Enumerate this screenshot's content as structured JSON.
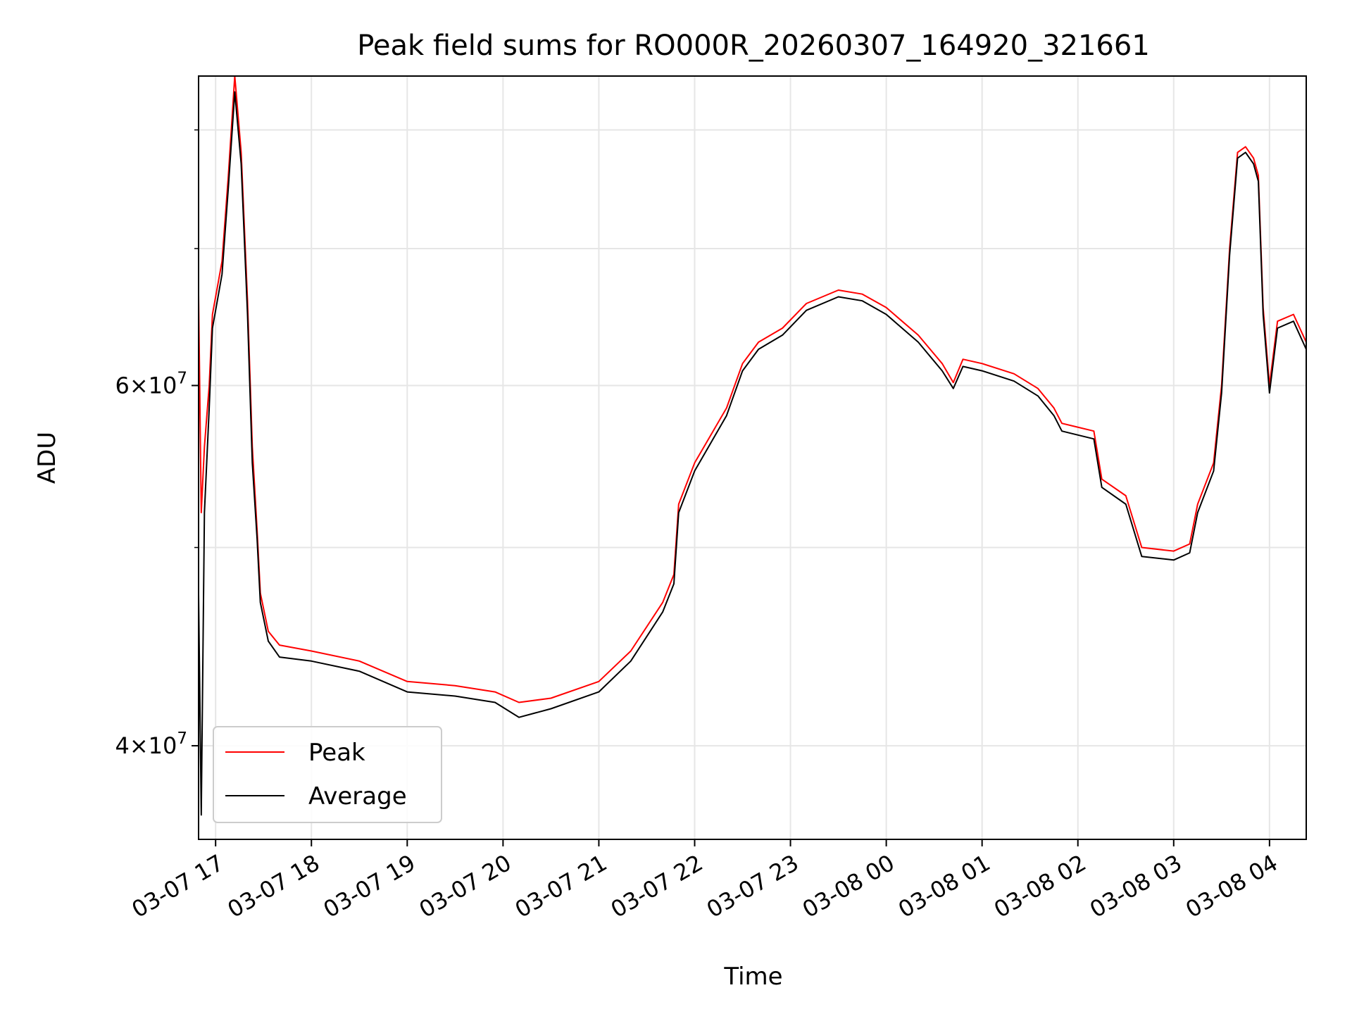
{
  "chart_data": {
    "type": "line",
    "title": "Peak field sums for RO000R_20260307_164920_321661",
    "xlabel": "Time",
    "ylabel": "ADU",
    "yscale": "log",
    "ylim": [
      36000000,
      85000000
    ],
    "xlim": [
      "2026-03-07 16:49:20",
      "2026-03-08 04:23:00"
    ],
    "grid": true,
    "legend_position": "lower-left",
    "x_ticks": [
      {
        "t": "2026-03-07 17:00",
        "label": "03-07 17"
      },
      {
        "t": "2026-03-07 18:00",
        "label": "03-07 18"
      },
      {
        "t": "2026-03-07 19:00",
        "label": "03-07 19"
      },
      {
        "t": "2026-03-07 20:00",
        "label": "03-07 20"
      },
      {
        "t": "2026-03-07 21:00",
        "label": "03-07 21"
      },
      {
        "t": "2026-03-07 22:00",
        "label": "03-07 22"
      },
      {
        "t": "2026-03-07 23:00",
        "label": "03-07 23"
      },
      {
        "t": "2026-03-08 00:00",
        "label": "03-08 00"
      },
      {
        "t": "2026-03-08 01:00",
        "label": "03-08 01"
      },
      {
        "t": "2026-03-08 02:00",
        "label": "03-08 02"
      },
      {
        "t": "2026-03-08 03:00",
        "label": "03-08 03"
      },
      {
        "t": "2026-03-08 04:00",
        "label": "03-08 04"
      }
    ],
    "y_ticks_major": [
      {
        "value": 40000000,
        "label_mantissa": "4",
        "label_base": "10",
        "label_exp": "7"
      },
      {
        "value": 60000000,
        "label_mantissa": "6",
        "label_base": "10",
        "label_exp": "7"
      }
    ],
    "y_ticks_minor": [
      50000000,
      70000000,
      80000000
    ],
    "series": [
      {
        "name": "Peak",
        "color": "#ff0000",
        "points": [
          [
            "2026-03-07 16:49",
            70000000
          ],
          [
            "2026-03-07 16:51",
            52000000
          ],
          [
            "2026-03-07 16:53",
            56000000
          ],
          [
            "2026-03-07 16:56",
            60000000
          ],
          [
            "2026-03-07 16:58",
            65000000
          ],
          [
            "2026-03-07 17:04",
            69000000
          ],
          [
            "2026-03-07 17:08",
            76000000
          ],
          [
            "2026-03-07 17:12",
            85000000
          ],
          [
            "2026-03-07 17:16",
            78000000
          ],
          [
            "2026-03-07 17:20",
            66000000
          ],
          [
            "2026-03-07 17:23",
            56000000
          ],
          [
            "2026-03-07 17:26",
            51000000
          ],
          [
            "2026-03-07 17:28",
            47500000
          ],
          [
            "2026-03-07 17:33",
            45500000
          ],
          [
            "2026-03-07 17:40",
            44800000
          ],
          [
            "2026-03-07 18:00",
            44500000
          ],
          [
            "2026-03-07 18:30",
            44000000
          ],
          [
            "2026-03-07 19:00",
            43000000
          ],
          [
            "2026-03-07 19:30",
            42800000
          ],
          [
            "2026-03-07 19:55",
            42500000
          ],
          [
            "2026-03-07 20:10",
            42000000
          ],
          [
            "2026-03-07 20:30",
            42200000
          ],
          [
            "2026-03-07 21:00",
            43000000
          ],
          [
            "2026-03-07 21:20",
            44500000
          ],
          [
            "2026-03-07 21:40",
            47000000
          ],
          [
            "2026-03-07 21:47",
            48500000
          ],
          [
            "2026-03-07 21:50",
            52500000
          ],
          [
            "2026-03-07 22:00",
            55000000
          ],
          [
            "2026-03-07 22:20",
            58500000
          ],
          [
            "2026-03-07 22:30",
            61500000
          ],
          [
            "2026-03-07 22:40",
            63000000
          ],
          [
            "2026-03-07 22:55",
            64000000
          ],
          [
            "2026-03-07 23:10",
            65800000
          ],
          [
            "2026-03-07 23:30",
            66800000
          ],
          [
            "2026-03-07 23:45",
            66500000
          ],
          [
            "2026-03-08 00:00",
            65500000
          ],
          [
            "2026-03-08 00:20",
            63500000
          ],
          [
            "2026-03-08 00:35",
            61500000
          ],
          [
            "2026-03-08 00:42",
            60200000
          ],
          [
            "2026-03-08 00:48",
            61800000
          ],
          [
            "2026-03-08 01:00",
            61500000
          ],
          [
            "2026-03-08 01:20",
            60800000
          ],
          [
            "2026-03-08 01:35",
            59800000
          ],
          [
            "2026-03-08 01:45",
            58500000
          ],
          [
            "2026-03-08 01:50",
            57500000
          ],
          [
            "2026-03-08 02:10",
            57000000
          ],
          [
            "2026-03-08 02:15",
            54000000
          ],
          [
            "2026-03-08 02:30",
            53000000
          ],
          [
            "2026-03-08 02:40",
            50000000
          ],
          [
            "2026-03-08 03:00",
            49800000
          ],
          [
            "2026-03-08 03:10",
            50200000
          ],
          [
            "2026-03-08 03:15",
            52500000
          ],
          [
            "2026-03-08 03:25",
            55000000
          ],
          [
            "2026-03-08 03:30",
            60000000
          ],
          [
            "2026-03-08 03:35",
            70000000
          ],
          [
            "2026-03-08 03:40",
            78000000
          ],
          [
            "2026-03-08 03:45",
            78500000
          ],
          [
            "2026-03-08 03:50",
            77500000
          ],
          [
            "2026-03-08 03:53",
            76000000
          ],
          [
            "2026-03-08 03:56",
            65500000
          ],
          [
            "2026-03-08 04:00",
            60000000
          ],
          [
            "2026-03-08 04:05",
            64500000
          ],
          [
            "2026-03-08 04:15",
            65000000
          ],
          [
            "2026-03-08 04:23",
            63000000
          ]
        ]
      },
      {
        "name": "Average",
        "color": "#000000",
        "points": [
          [
            "2026-03-07 16:49",
            50000000
          ],
          [
            "2026-03-07 16:51",
            37000000
          ],
          [
            "2026-03-07 16:53",
            52000000
          ],
          [
            "2026-03-07 16:56",
            58500000
          ],
          [
            "2026-03-07 16:58",
            64000000
          ],
          [
            "2026-03-07 17:04",
            68000000
          ],
          [
            "2026-03-07 17:08",
            75000000
          ],
          [
            "2026-03-07 17:12",
            83500000
          ],
          [
            "2026-03-07 17:16",
            77000000
          ],
          [
            "2026-03-07 17:20",
            65000000
          ],
          [
            "2026-03-07 17:23",
            55000000
          ],
          [
            "2026-03-07 17:26",
            50500000
          ],
          [
            "2026-03-07 17:28",
            47000000
          ],
          [
            "2026-03-07 17:33",
            45000000
          ],
          [
            "2026-03-07 17:40",
            44200000
          ],
          [
            "2026-03-07 18:00",
            44000000
          ],
          [
            "2026-03-07 18:30",
            43500000
          ],
          [
            "2026-03-07 19:00",
            42500000
          ],
          [
            "2026-03-07 19:30",
            42300000
          ],
          [
            "2026-03-07 19:55",
            42000000
          ],
          [
            "2026-03-07 20:10",
            41300000
          ],
          [
            "2026-03-07 20:30",
            41700000
          ],
          [
            "2026-03-07 21:00",
            42500000
          ],
          [
            "2026-03-07 21:20",
            44000000
          ],
          [
            "2026-03-07 21:40",
            46500000
          ],
          [
            "2026-03-07 21:47",
            48000000
          ],
          [
            "2026-03-07 21:50",
            52000000
          ],
          [
            "2026-03-07 22:00",
            54500000
          ],
          [
            "2026-03-07 22:20",
            58000000
          ],
          [
            "2026-03-07 22:30",
            61000000
          ],
          [
            "2026-03-07 22:40",
            62500000
          ],
          [
            "2026-03-07 22:55",
            63500000
          ],
          [
            "2026-03-07 23:10",
            65300000
          ],
          [
            "2026-03-07 23:30",
            66300000
          ],
          [
            "2026-03-07 23:45",
            66000000
          ],
          [
            "2026-03-08 00:00",
            65000000
          ],
          [
            "2026-03-08 00:20",
            63000000
          ],
          [
            "2026-03-08 00:35",
            61000000
          ],
          [
            "2026-03-08 00:42",
            59800000
          ],
          [
            "2026-03-08 00:48",
            61300000
          ],
          [
            "2026-03-08 01:00",
            61000000
          ],
          [
            "2026-03-08 01:20",
            60300000
          ],
          [
            "2026-03-08 01:35",
            59300000
          ],
          [
            "2026-03-08 01:45",
            58000000
          ],
          [
            "2026-03-08 01:50",
            57000000
          ],
          [
            "2026-03-08 02:10",
            56500000
          ],
          [
            "2026-03-08 02:15",
            53500000
          ],
          [
            "2026-03-08 02:30",
            52500000
          ],
          [
            "2026-03-08 02:40",
            49500000
          ],
          [
            "2026-03-08 03:00",
            49300000
          ],
          [
            "2026-03-08 03:10",
            49700000
          ],
          [
            "2026-03-08 03:15",
            52000000
          ],
          [
            "2026-03-08 03:25",
            54500000
          ],
          [
            "2026-03-08 03:30",
            59500000
          ],
          [
            "2026-03-08 03:35",
            69500000
          ],
          [
            "2026-03-08 03:40",
            77500000
          ],
          [
            "2026-03-08 03:45",
            78000000
          ],
          [
            "2026-03-08 03:50",
            77000000
          ],
          [
            "2026-03-08 03:53",
            75500000
          ],
          [
            "2026-03-08 03:56",
            65000000
          ],
          [
            "2026-03-08 04:00",
            59500000
          ],
          [
            "2026-03-08 04:05",
            64000000
          ],
          [
            "2026-03-08 04:15",
            64500000
          ],
          [
            "2026-03-08 04:23",
            62500000
          ]
        ]
      }
    ]
  }
}
